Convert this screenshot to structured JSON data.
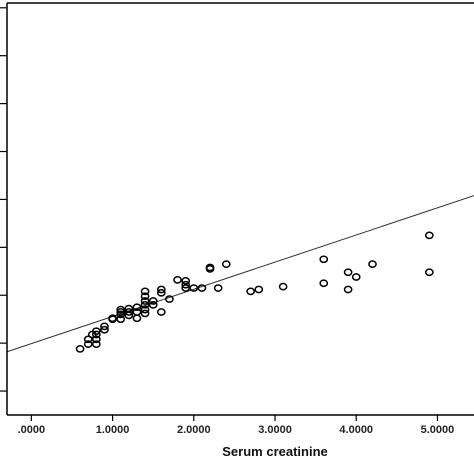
{
  "chart_data": {
    "type": "scatter",
    "title": "",
    "xlabel": "Serum creatinine",
    "ylabel": "",
    "xlim": [
      -0.3,
      5.45
    ],
    "ylim": [
      0,
      8.6
    ],
    "x_ticks": [
      0,
      1,
      2,
      3,
      4,
      5
    ],
    "x_tick_labels": [
      ".0000",
      "1.0000",
      "2.0000",
      "3.0000",
      "4.0000",
      "5.0000"
    ],
    "y_ticks": [
      0.5,
      1.5,
      2.5,
      3.5,
      4.5,
      5.5,
      6.5,
      7.5,
      8.5
    ],
    "grid": false,
    "legend": "none",
    "colors": {
      "axis": "#000000",
      "points": "#000000",
      "fit_line": "#333333"
    },
    "fit_line": {
      "points": [
        [
          -0.3,
          1.32
        ],
        [
          5.45,
          4.58
        ]
      ]
    },
    "series": [
      {
        "points": [
          [
            0.6,
            1.38
          ],
          [
            0.7,
            1.48
          ],
          [
            0.7,
            1.58
          ],
          [
            0.75,
            1.68
          ],
          [
            0.8,
            1.48
          ],
          [
            0.8,
            1.58
          ],
          [
            0.8,
            1.68
          ],
          [
            0.8,
            1.75
          ],
          [
            0.9,
            1.78
          ],
          [
            0.9,
            1.85
          ],
          [
            1.0,
            2.0
          ],
          [
            1.0,
            2.02
          ],
          [
            1.1,
            2.0
          ],
          [
            1.1,
            2.1
          ],
          [
            1.1,
            2.15
          ],
          [
            1.1,
            2.2
          ],
          [
            1.2,
            2.08
          ],
          [
            1.2,
            2.15
          ],
          [
            1.2,
            2.22
          ],
          [
            1.3,
            2.02
          ],
          [
            1.3,
            2.15
          ],
          [
            1.3,
            2.25
          ],
          [
            1.4,
            2.12
          ],
          [
            1.4,
            2.2
          ],
          [
            1.4,
            2.3
          ],
          [
            1.4,
            2.38
          ],
          [
            1.4,
            2.48
          ],
          [
            1.4,
            2.58
          ],
          [
            1.5,
            2.3
          ],
          [
            1.5,
            2.38
          ],
          [
            1.6,
            2.15
          ],
          [
            1.6,
            2.55
          ],
          [
            1.6,
            2.62
          ],
          [
            1.7,
            2.42
          ],
          [
            1.8,
            2.82
          ],
          [
            1.9,
            2.65
          ],
          [
            1.9,
            2.72
          ],
          [
            1.9,
            2.8
          ],
          [
            2.0,
            2.65
          ],
          [
            2.1,
            2.65
          ],
          [
            2.2,
            3.05
          ],
          [
            2.2,
            3.08
          ],
          [
            2.3,
            2.65
          ],
          [
            2.4,
            3.15
          ],
          [
            2.7,
            2.58
          ],
          [
            2.8,
            2.62
          ],
          [
            3.1,
            2.68
          ],
          [
            3.6,
            2.75
          ],
          [
            3.6,
            3.25
          ],
          [
            3.9,
            2.62
          ],
          [
            3.9,
            2.98
          ],
          [
            4.0,
            2.88
          ],
          [
            4.2,
            3.15
          ],
          [
            4.9,
            2.98
          ],
          [
            4.9,
            3.75
          ]
        ]
      }
    ]
  }
}
